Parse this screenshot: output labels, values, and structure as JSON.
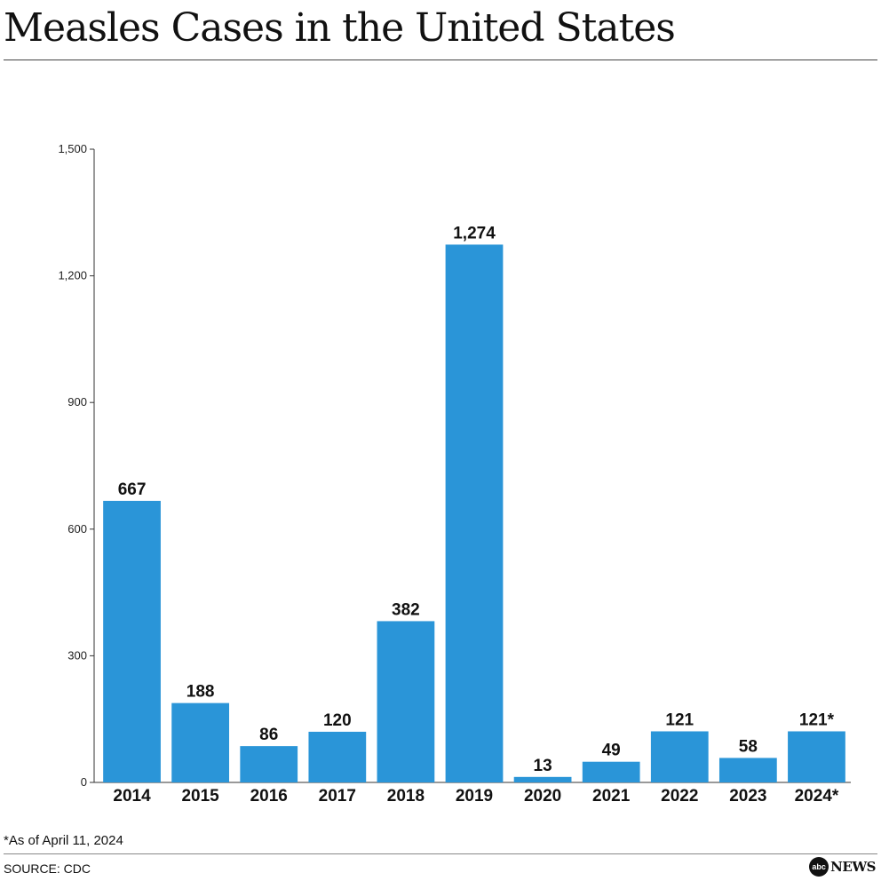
{
  "header": {
    "title": "Measles Cases in the United States"
  },
  "footer": {
    "footnote": "*As of April 11, 2024",
    "source": "SOURCE: CDC",
    "logo_mark": "abc",
    "logo_text": "NEWS"
  },
  "chart_data": {
    "type": "bar",
    "title": "Measles Cases in the United States",
    "xlabel": "",
    "ylabel": "",
    "ylim": [
      0,
      1500
    ],
    "yticks": [
      0,
      300,
      600,
      900,
      1200,
      1500
    ],
    "ytick_labels": [
      "0",
      "300",
      "600",
      "900",
      "1,200",
      "1,500"
    ],
    "categories": [
      "2014",
      "2015",
      "2016",
      "2017",
      "2018",
      "2019",
      "2020",
      "2021",
      "2022",
      "2023",
      "2024*"
    ],
    "values": [
      667,
      188,
      86,
      120,
      382,
      1274,
      13,
      49,
      121,
      58,
      121
    ],
    "value_labels": [
      "667",
      "188",
      "86",
      "120",
      "382",
      "1,274",
      "13",
      "49",
      "121",
      "58",
      "121*"
    ],
    "bar_color": "#2a95d8",
    "grid": false
  }
}
